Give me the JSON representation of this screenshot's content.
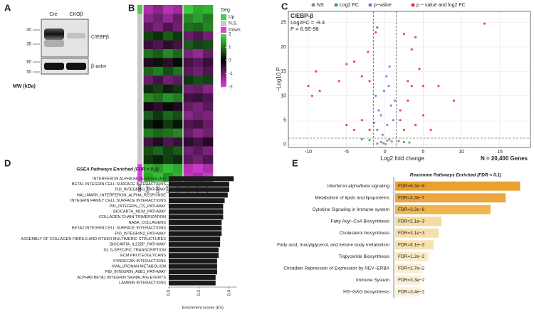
{
  "panel_labels": [
    "A",
    "B",
    "C",
    "D",
    "E"
  ],
  "blot": {
    "columns": [
      "Cre",
      "CKOβ"
    ],
    "bands": [
      "C/EBPβ",
      "β-actin"
    ],
    "mw_markers": [
      "40",
      "35",
      "60",
      "50"
    ],
    "mw_label": "MW (kDa)"
  },
  "chart_data": [
    {
      "type": "heatmap",
      "legend_title": "Deg",
      "deg_levels": [
        "Up",
        "N.S.",
        "Down"
      ],
      "deg_colors": [
        "#4dc94d",
        "#c8c8c8",
        "#e040e0"
      ],
      "deg_label": "DEG",
      "columns": [
        "CRE1",
        "CRE2",
        "CRE3",
        "CRE4",
        "CKOB1",
        "CKOB2",
        "CKOB3"
      ],
      "deg": [
        "Up",
        "N.S.",
        "N.S.",
        "N.S.",
        "N.S.",
        "N.S.",
        "N.S.",
        "N.S.",
        "N.S.",
        "N.S.",
        "N.S.",
        "N.S.",
        "N.S.",
        "N.S.",
        "N.S.",
        "N.S.",
        "N.S.",
        "N.S.",
        "Down",
        "Down"
      ],
      "values": [
        [
          -1.5,
          -1.2,
          -1.6,
          -1.4,
          1.8,
          1.5,
          1.6
        ],
        [
          -1.2,
          -1.0,
          -1.3,
          -0.9,
          1.2,
          1.4,
          1.1
        ],
        [
          -0.8,
          -1.1,
          -0.7,
          -1.0,
          1.0,
          0.9,
          1.2
        ],
        [
          0.6,
          0.4,
          0.8,
          0.5,
          -0.9,
          -0.7,
          -1.0
        ],
        [
          -0.5,
          -0.7,
          -0.4,
          -0.6,
          0.8,
          0.6,
          0.7
        ],
        [
          1.0,
          0.8,
          1.2,
          0.9,
          -1.1,
          -1.3,
          -0.9
        ],
        [
          -0.3,
          0.2,
          -0.4,
          0.1,
          -0.6,
          -0.8,
          -0.5
        ],
        [
          0.9,
          1.1,
          0.7,
          1.0,
          -0.8,
          -1.0,
          -0.7
        ],
        [
          -0.9,
          -0.6,
          -1.0,
          -0.8,
          0.5,
          0.7,
          0.6
        ],
        [
          0.4,
          0.6,
          0.3,
          0.5,
          -1.0,
          -0.9,
          -1.2
        ],
        [
          1.2,
          1.0,
          1.3,
          1.1,
          -0.6,
          -0.5,
          -0.7
        ],
        [
          -0.2,
          -0.4,
          0.1,
          -0.3,
          -0.9,
          -1.1,
          -0.8
        ],
        [
          0.8,
          0.5,
          0.9,
          0.7,
          -1.2,
          -1.0,
          -1.1
        ],
        [
          0.3,
          0.1,
          0.5,
          0.2,
          -0.7,
          -0.6,
          -0.9
        ],
        [
          1.1,
          0.9,
          1.0,
          1.2,
          -0.9,
          -1.2,
          -1.0
        ],
        [
          -0.6,
          -0.3,
          -0.7,
          -0.5,
          -0.4,
          -0.6,
          -0.3
        ],
        [
          0.7,
          0.9,
          0.6,
          0.8,
          -1.0,
          -0.8,
          -1.1
        ],
        [
          0.5,
          0.3,
          0.6,
          0.4,
          -0.8,
          -1.0,
          -0.7
        ],
        [
          1.6,
          1.4,
          1.7,
          1.5,
          -1.6,
          -1.8,
          -1.5
        ],
        [
          1.5,
          1.7,
          1.3,
          1.6,
          -1.7,
          -1.5,
          -1.8
        ]
      ],
      "colorbar_lim": [
        -2,
        2
      ],
      "colorbar_ticks": [
        2,
        1,
        0,
        -1,
        -2
      ],
      "color_low": "#e040e0",
      "color_mid": "#000000",
      "color_high": "#40e040"
    },
    {
      "type": "scatter",
      "title": "C/EBP-β",
      "annotations": [
        "Log2FC = -8.4",
        "P = 6.5E-98"
      ],
      "xlabel": "Log2 fold change",
      "ylabel": "−Log10 P",
      "note": "N = 20,400 Genes",
      "xlim": [
        -12.6,
        19
      ],
      "ylim": [
        -0.6,
        27.3
      ],
      "xticks": [
        -10,
        -5,
        0,
        5,
        10,
        15
      ],
      "yticks": [
        0,
        5,
        10,
        15,
        20,
        25
      ],
      "vlines": [
        -1.5,
        1.5
      ],
      "hline": 1.3,
      "grid": true,
      "series": [
        {
          "name": "NS",
          "color": "#888888",
          "x": [
            -0.5,
            0.3,
            -0.2,
            0.6,
            -1,
            0.9,
            0.1
          ],
          "values": [
            0.5,
            0.8,
            0.3,
            1.0,
            0.2,
            0.6,
            0.1
          ]
        },
        {
          "name": "Log2 FC",
          "color": "#3aa84a",
          "x": [
            -2,
            2.5,
            -3,
            1.8,
            3.2
          ],
          "values": [
            0.9,
            0.5,
            1.1,
            0.7,
            0.4
          ]
        },
        {
          "name": "p−value",
          "color": "#5b7fe0",
          "x": [
            -1,
            -0.5,
            0.3,
            0.8,
            -1.2,
            0.5,
            -0.3,
            1.1,
            -0.8,
            0.2,
            1.3,
            -1.4,
            0.6,
            -0.1
          ],
          "values": [
            3,
            6,
            4,
            8,
            10,
            12,
            2,
            5,
            7,
            14,
            9,
            4.5,
            16,
            11
          ]
        },
        {
          "name": "p − value and log2 FC",
          "color": "#e03030",
          "x": [
            13,
            -1,
            -1.2,
            2.5,
            4,
            3.5,
            -2.2,
            -4,
            -5,
            -9,
            -10,
            -8.5,
            -9.5,
            -6,
            -3,
            -2,
            4.5,
            3,
            3.5,
            5,
            7,
            9,
            3,
            2,
            5,
            2,
            4,
            -3,
            -5,
            -2,
            2.5,
            6,
            -4
          ],
          "values": [
            24.8,
            24,
            23,
            22.7,
            22,
            19.5,
            19,
            17,
            16.5,
            15,
            12,
            11,
            10,
            13,
            14,
            13,
            15.5,
            13,
            12,
            12,
            12,
            9,
            9,
            7,
            6,
            5,
            4,
            5,
            4,
            3,
            3,
            3,
            3
          ]
        }
      ]
    },
    {
      "type": "barh",
      "title": "GSEA Pathways Enriched (FDR < 0.1)",
      "xlabel": "Enrichment scores (ES)",
      "color": "#1a1a1a",
      "categories": [
        "INTERFERON ALPHA BETA SIGNALING",
        "BETA1 INTEGRIN CELL SURFACE INTERACTIONS",
        "PID_INTEGRIN1_PATHWAY",
        "HALLMARK_INTERFERON_ALPHA_RESPONSE",
        "INTEGRIN FAMILY CELL SURFACE INTERACTIONS",
        "PID_INTEGRIN_CS_PATHWAY",
        "BIOCARTA_MCM_PATHWAY",
        "COLLAGEN CHAIN TRIMERIZATION",
        "NABA_COLLAGENS",
        "BETA2 INTEGRIN CELL SURFACE INTERACTIONS",
        "PID_INTEGRIN2_PATHWAY",
        "ASSEMBLY OF COLLAGEN FIBRILS AND OTHER MULTIMERIC STRUCTURES",
        "BIOCARTA_IL22BP_PATHWAY",
        "G1 S-SPECIFIC TRANSCRIPTION",
        "ECM PROTEOGLYCANS",
        "SYNDECAN INTERACTIONS",
        "HYALURONAN METABOLISM",
        "PID_INTEGRIN_A9B1_PATHWAY",
        "ALPHA9 BETA1 INTEGRIN SIGNALING EVENTS",
        "LAMININ INTERACTIONS"
      ],
      "values": [
        0.43,
        0.4,
        0.4,
        0.39,
        0.37,
        0.36,
        0.36,
        0.36,
        0.35,
        0.35,
        0.35,
        0.34,
        0.34,
        0.33,
        0.33,
        0.32,
        0.32,
        0.32,
        0.31,
        0.31
      ],
      "xlim": [
        0,
        0.45
      ],
      "xticks": [
        {
          "value": 0,
          "label": "0.0"
        },
        {
          "value": 0.2,
          "label": "0.2"
        },
        {
          "value": 0.4,
          "label": "0.4"
        }
      ]
    },
    {
      "type": "barh",
      "title": "Reactome Pathways Enriched (FDR < 0.1)",
      "log_scale": true,
      "xlim": [
        1,
        1e-08
      ],
      "categories": [
        "Interferon alpha/beta signaling",
        "Metabolism of lipids and lipoproteins",
        "Cytokine Signaling in Immune system",
        "Fatty Acyl−CoA Biosynthesis",
        "Cholesterol biosynthesis",
        "Fatty acid, triacylglycerol, and ketone body metabolism",
        "Triglyceride Biosynthesis",
        "Circadian Repression of Expression by REV−ERBA",
        "Immune System",
        "HS−GAG biosynthesis"
      ],
      "values": [
        6.3e-08,
        4.3e-07,
        3.2e-06,
        0.0021,
        0.0031,
        0.0061,
        0.012,
        0.027,
        0.033,
        0.034
      ],
      "value_labels": [
        "FDR=6.3e−8",
        "FDR=4.3e−7",
        "FDR=3.2e−6",
        "FDR=2.1e−3",
        "FDR=3.1e−3",
        "FDR=6.1e−3",
        "FDR=1.2e−2",
        "FDR=2.7e−2",
        "FDR=3.3e−2",
        "FDR=3.4e−2"
      ],
      "colors": [
        "#e8a030",
        "#eba640",
        "#efb550",
        "#f5dca0",
        "#f6dfa8",
        "#f7e2b0",
        "#f9ebc8",
        "#faeed0",
        "#fbf0d6",
        "#fbf1d8"
      ]
    }
  ]
}
